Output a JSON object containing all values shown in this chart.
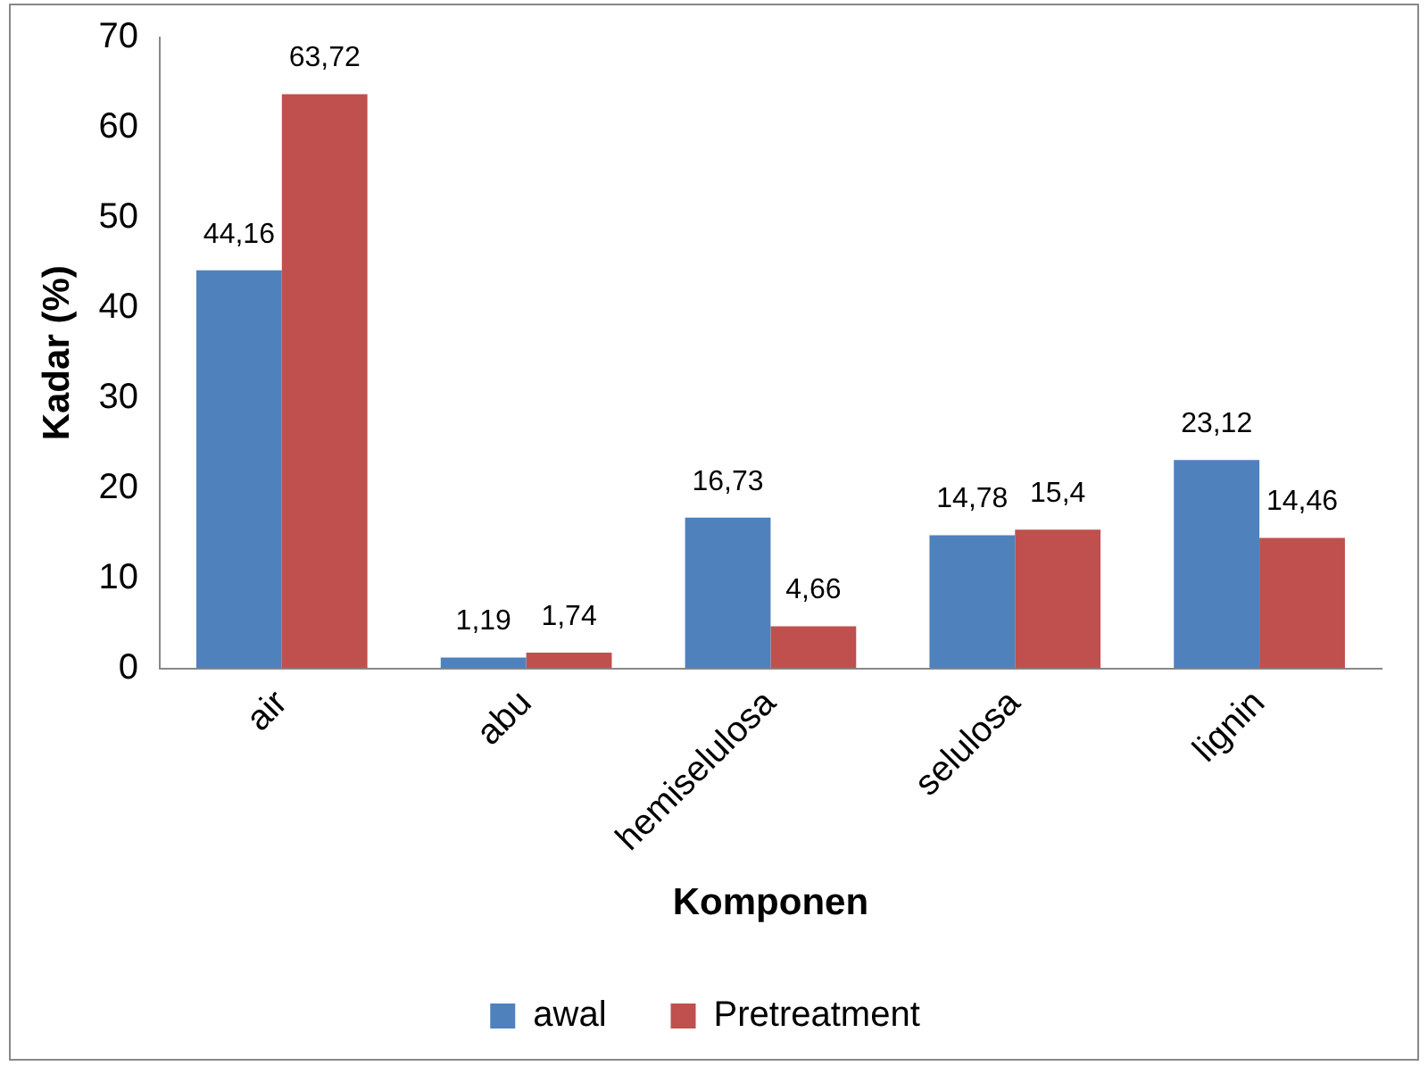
{
  "chart_data": {
    "type": "bar",
    "xlabel": "Komponen",
    "ylabel": "Kadar (%)",
    "categories": [
      "air",
      "abu",
      "hemiselulosa",
      "selulosa",
      "lignin"
    ],
    "series": [
      {
        "name": "awal",
        "color": "#4f81bd",
        "values": [
          44.16,
          1.19,
          16.73,
          14.78,
          23.12
        ],
        "value_labels": [
          "44,16",
          "1,19",
          "16,73",
          "14,78",
          "23,12"
        ]
      },
      {
        "name": "Pretreatment",
        "color": "#c0504d",
        "values": [
          63.72,
          1.74,
          4.66,
          15.4,
          14.46
        ],
        "value_labels": [
          "63,72",
          "1,74",
          "4,66",
          "15,4",
          "14,46"
        ]
      }
    ],
    "ylim": [
      0,
      70
    ],
    "yticks": [
      0,
      10,
      20,
      30,
      40,
      50,
      60,
      70
    ],
    "grid": false,
    "legend": "bottom"
  }
}
